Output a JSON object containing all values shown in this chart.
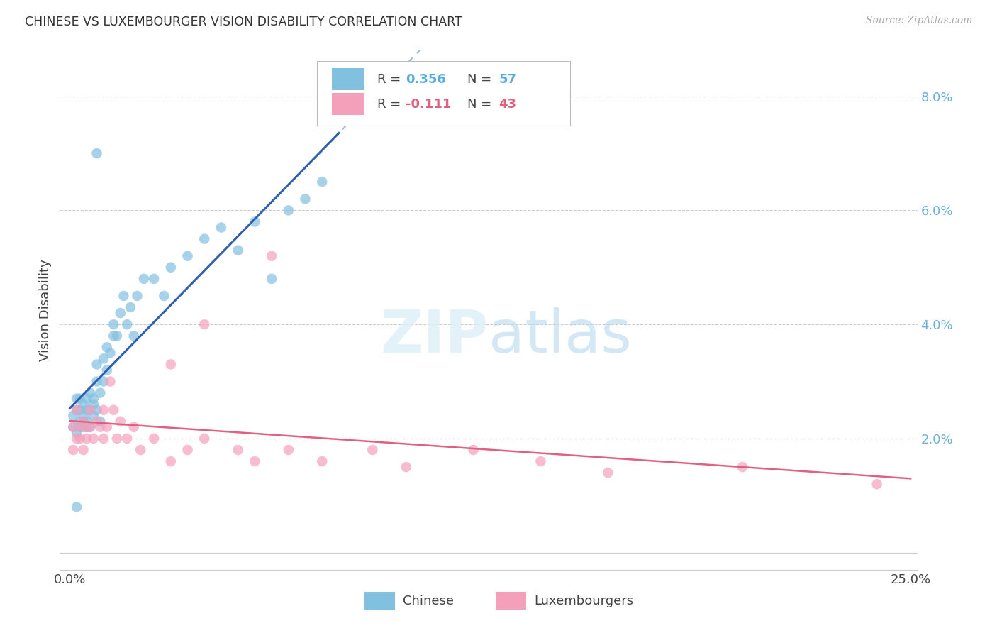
{
  "title": "CHINESE VS LUXEMBOURGER VISION DISABILITY CORRELATION CHART",
  "source": "Source: ZipAtlas.com",
  "ylabel": "Vision Disability",
  "xmin": 0.0,
  "xmax": 0.25,
  "ymin": 0.0,
  "ymax": 0.088,
  "yticks": [
    0.02,
    0.04,
    0.06,
    0.08
  ],
  "ytick_labels": [
    "2.0%",
    "4.0%",
    "6.0%",
    "8.0%"
  ],
  "xtick_left": "0.0%",
  "xtick_right": "25.0%",
  "grid_color": "#cccccc",
  "background_color": "#ffffff",
  "chinese_color": "#82c0e0",
  "luxembourger_color": "#f4a0bb",
  "chinese_line_color": "#3060b0",
  "luxembourger_line_color": "#e06080",
  "ytick_color": "#6ab0d8",
  "R_chinese": 0.356,
  "N_chinese": 57,
  "R_luxembourger": -0.111,
  "N_luxembourger": 43,
  "legend_chi_R_color": "#5aacdc",
  "legend_chi_N_color": "#5aacdc",
  "legend_lux_R_color": "#e06080",
  "legend_lux_N_color": "#e06080",
  "chi_x": [
    0.001,
    0.001,
    0.002,
    0.002,
    0.002,
    0.003,
    0.003,
    0.003,
    0.003,
    0.004,
    0.004,
    0.004,
    0.004,
    0.005,
    0.005,
    0.005,
    0.005,
    0.006,
    0.006,
    0.006,
    0.007,
    0.007,
    0.007,
    0.008,
    0.008,
    0.008,
    0.009,
    0.009,
    0.01,
    0.01,
    0.011,
    0.011,
    0.012,
    0.013,
    0.013,
    0.014,
    0.015,
    0.016,
    0.017,
    0.018,
    0.019,
    0.02,
    0.022,
    0.025,
    0.028,
    0.03,
    0.035,
    0.04,
    0.045,
    0.05,
    0.055,
    0.06,
    0.065,
    0.07,
    0.075,
    0.008,
    0.002
  ],
  "chi_y": [
    0.022,
    0.024,
    0.021,
    0.025,
    0.027,
    0.023,
    0.022,
    0.025,
    0.027,
    0.023,
    0.026,
    0.022,
    0.024,
    0.025,
    0.023,
    0.022,
    0.027,
    0.025,
    0.022,
    0.028,
    0.026,
    0.024,
    0.027,
    0.025,
    0.03,
    0.033,
    0.028,
    0.023,
    0.03,
    0.034,
    0.032,
    0.036,
    0.035,
    0.038,
    0.04,
    0.038,
    0.042,
    0.045,
    0.04,
    0.043,
    0.038,
    0.045,
    0.048,
    0.048,
    0.045,
    0.05,
    0.052,
    0.055,
    0.057,
    0.053,
    0.058,
    0.048,
    0.06,
    0.062,
    0.065,
    0.07,
    0.008
  ],
  "lux_x": [
    0.001,
    0.001,
    0.002,
    0.002,
    0.003,
    0.003,
    0.004,
    0.004,
    0.005,
    0.005,
    0.006,
    0.006,
    0.007,
    0.008,
    0.009,
    0.01,
    0.01,
    0.011,
    0.012,
    0.013,
    0.014,
    0.015,
    0.017,
    0.019,
    0.021,
    0.025,
    0.03,
    0.035,
    0.04,
    0.05,
    0.055,
    0.065,
    0.075,
    0.09,
    0.1,
    0.12,
    0.14,
    0.16,
    0.2,
    0.03,
    0.04,
    0.24,
    0.06
  ],
  "lux_y": [
    0.018,
    0.022,
    0.02,
    0.025,
    0.022,
    0.02,
    0.023,
    0.018,
    0.022,
    0.02,
    0.022,
    0.025,
    0.02,
    0.023,
    0.022,
    0.02,
    0.025,
    0.022,
    0.03,
    0.025,
    0.02,
    0.023,
    0.02,
    0.022,
    0.018,
    0.02,
    0.016,
    0.018,
    0.02,
    0.018,
    0.016,
    0.018,
    0.016,
    0.018,
    0.015,
    0.018,
    0.016,
    0.014,
    0.015,
    0.033,
    0.04,
    0.012,
    0.052
  ]
}
